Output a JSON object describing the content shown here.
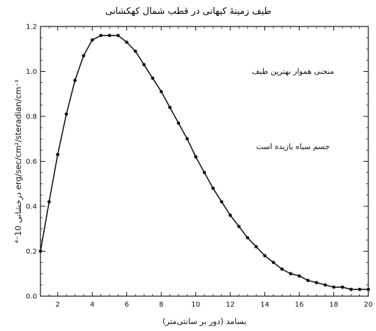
{
  "chart_data": {
    "type": "line",
    "title": "طیف زمینهٔ کیهانی در قطب شمال کهکشانی",
    "xlabel": "بسامد (دور بر سانتی‌متر)",
    "ylabel": "درخشانی 10⁻⁴ erg/sec/cm²/steradian/cm⁻¹",
    "xlim": [
      1,
      20
    ],
    "ylim": [
      0,
      1.2
    ],
    "x_ticks": [
      2,
      4,
      6,
      8,
      10,
      12,
      14,
      16,
      18,
      20
    ],
    "x_tick_labels": [
      "2",
      "4",
      "6",
      "8",
      "10",
      "12",
      "14",
      "16",
      "18",
      "20"
    ],
    "y_ticks": [
      0,
      0.2,
      0.4,
      0.6,
      0.8,
      1.0,
      1.2
    ],
    "y_tick_labels": [
      "0.0",
      "0.2",
      "0.4",
      "0.6",
      "0.8",
      "1.0",
      "1.2"
    ],
    "grid": false,
    "annotations": [
      {
        "text": "منحنی هموار بهترین طیف"
      },
      {
        "text": "جسم سیاه بازیده است"
      }
    ],
    "series": [
      {
        "style": "points",
        "color": "#111111",
        "x": [
          1.0,
          1.5,
          2.0,
          2.5,
          3.0,
          3.5,
          4.0,
          4.5,
          5.0,
          5.5,
          6.0,
          6.5,
          7.0,
          7.5,
          8.0,
          8.5,
          9.0,
          9.5,
          10.0,
          10.5,
          11.0,
          11.5,
          12.0,
          12.5,
          13.0,
          13.5,
          14.0,
          14.5,
          15.0,
          15.5,
          16.0,
          16.5,
          17.0,
          17.5,
          18.0,
          18.5,
          19.0,
          19.5,
          20.0
        ],
        "y": [
          0.2,
          0.42,
          0.63,
          0.81,
          0.96,
          1.07,
          1.14,
          1.16,
          1.16,
          1.16,
          1.13,
          1.09,
          1.03,
          0.97,
          0.91,
          0.84,
          0.77,
          0.7,
          0.62,
          0.55,
          0.48,
          0.42,
          0.36,
          0.31,
          0.26,
          0.22,
          0.18,
          0.15,
          0.12,
          0.1,
          0.09,
          0.07,
          0.06,
          0.05,
          0.04,
          0.04,
          0.03,
          0.03,
          0.03
        ]
      },
      {
        "style": "line",
        "color": "#111111",
        "x": [
          1.0,
          1.5,
          2.0,
          2.5,
          3.0,
          3.5,
          4.0,
          4.5,
          5.0,
          5.5,
          6.0,
          6.5,
          7.0,
          7.5,
          8.0,
          8.5,
          9.0,
          9.5,
          10.0,
          10.5,
          11.0,
          11.5,
          12.0,
          12.5,
          13.0,
          13.5,
          14.0,
          14.5,
          15.0,
          15.5,
          16.0,
          16.5,
          17.0,
          17.5,
          18.0,
          18.5,
          19.0,
          19.5,
          20.0
        ],
        "y": [
          0.2,
          0.42,
          0.63,
          0.81,
          0.96,
          1.07,
          1.14,
          1.16,
          1.16,
          1.16,
          1.13,
          1.09,
          1.03,
          0.97,
          0.91,
          0.84,
          0.77,
          0.7,
          0.62,
          0.55,
          0.48,
          0.42,
          0.36,
          0.31,
          0.26,
          0.22,
          0.18,
          0.15,
          0.12,
          0.1,
          0.09,
          0.07,
          0.06,
          0.05,
          0.04,
          0.04,
          0.03,
          0.03,
          0.03
        ]
      }
    ]
  }
}
